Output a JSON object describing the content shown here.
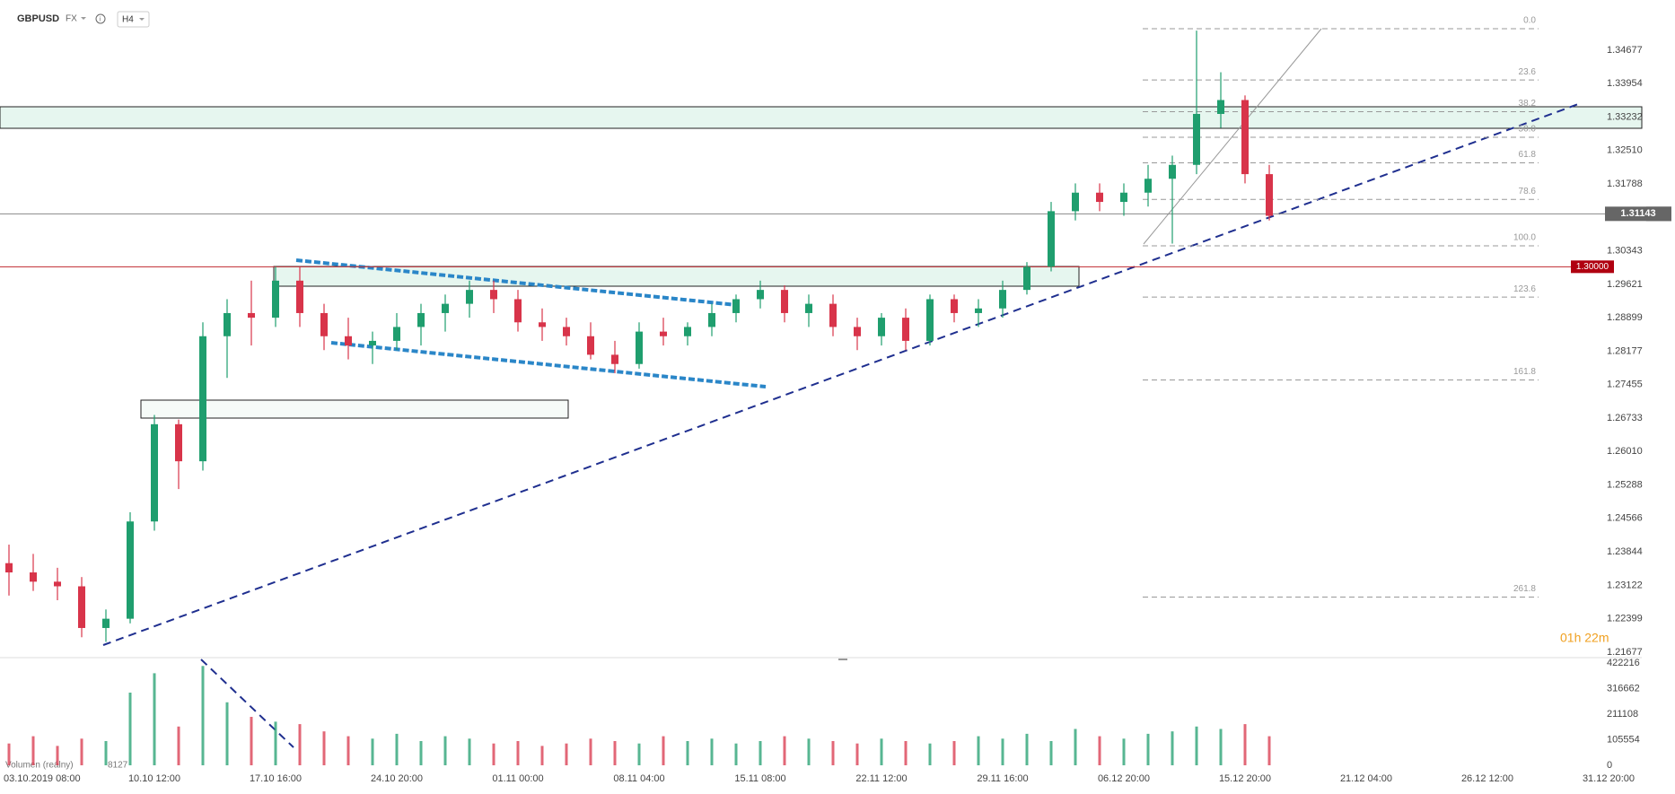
{
  "chart_data": {
    "type": "candlestick",
    "title": "GBPUSD",
    "market": "FX",
    "timeframe": "H4",
    "countdown": "01h 22m",
    "volume_label": "Volumen (reálny)",
    "volume_last": 8127,
    "up_color": "#1f9e6e",
    "down_color": "#d8344a",
    "categories": [
      null,
      "03.10.2019 08:00",
      null,
      null,
      null,
      null,
      "10.10 12:00",
      null,
      null,
      null,
      null,
      "17.10 16:00",
      null,
      null,
      null,
      null,
      "24.10 20:00",
      null,
      null,
      null,
      null,
      "01.11 00:00",
      null,
      null,
      null,
      null,
      "08.11 04:00",
      null,
      null,
      null,
      null,
      "15.11 08:00",
      null,
      null,
      null,
      null,
      "22.11 12:00",
      null,
      null,
      null,
      null,
      "29.11 16:00",
      null,
      null,
      null,
      null,
      "06.12 20:00",
      null,
      null,
      null,
      null,
      "15.12 20:00",
      null,
      null,
      null,
      null,
      "21.12 04:00",
      null,
      null,
      null,
      null,
      "26.12 12:00",
      null,
      null,
      null,
      null,
      "31.12 20:00"
    ],
    "open": [
      1.236,
      1.234,
      1.232,
      1.231,
      1.222,
      1.224,
      1.245,
      1.266,
      1.258,
      1.285,
      1.29,
      1.289,
      1.297,
      1.29,
      1.285,
      1.283,
      1.284,
      1.287,
      1.29,
      1.292,
      1.295,
      1.293,
      1.288,
      1.287,
      1.285,
      1.281,
      1.279,
      1.286,
      1.285,
      1.287,
      1.29,
      1.293,
      1.295,
      1.29,
      1.292,
      1.287,
      1.285,
      1.289,
      1.284,
      1.293,
      1.29,
      1.291,
      1.295,
      1.3,
      1.312,
      1.316,
      1.314,
      1.316,
      1.319,
      1.322,
      1.333,
      1.336,
      1.32,
      null,
      null,
      null,
      null,
      null,
      null,
      null,
      null,
      null,
      null,
      null,
      null,
      null,
      null
    ],
    "high": [
      1.24,
      1.238,
      1.235,
      1.233,
      1.226,
      1.247,
      1.268,
      1.267,
      1.288,
      1.293,
      1.297,
      1.3,
      1.3,
      1.292,
      1.289,
      1.286,
      1.29,
      1.292,
      1.294,
      1.297,
      1.297,
      1.295,
      1.291,
      1.289,
      1.288,
      1.284,
      1.288,
      1.289,
      1.288,
      1.292,
      1.294,
      1.297,
      1.296,
      1.294,
      1.294,
      1.289,
      1.29,
      1.291,
      1.294,
      1.294,
      1.293,
      1.297,
      1.301,
      1.314,
      1.318,
      1.318,
      1.318,
      1.322,
      1.324,
      1.351,
      1.342,
      1.337,
      1.322,
      null,
      null,
      null,
      null,
      null,
      null,
      null,
      null,
      null,
      null,
      null,
      null,
      null,
      null
    ],
    "low": [
      1.229,
      1.23,
      1.228,
      1.22,
      1.219,
      1.223,
      1.243,
      1.252,
      1.256,
      1.276,
      1.283,
      1.287,
      1.287,
      1.282,
      1.28,
      1.279,
      1.282,
      1.283,
      1.286,
      1.289,
      1.29,
      1.286,
      1.284,
      1.283,
      1.28,
      1.277,
      1.278,
      1.283,
      1.283,
      1.285,
      1.288,
      1.291,
      1.288,
      1.287,
      1.285,
      1.282,
      1.283,
      1.282,
      1.283,
      1.288,
      1.287,
      1.289,
      1.294,
      1.299,
      1.31,
      1.312,
      1.311,
      1.313,
      1.305,
      1.32,
      1.33,
      1.318,
      1.31,
      null,
      null,
      null,
      null,
      null,
      null,
      null,
      null,
      null,
      null,
      null,
      null,
      null,
      null
    ],
    "close": [
      1.234,
      1.232,
      1.231,
      1.222,
      1.224,
      1.245,
      1.266,
      1.258,
      1.285,
      1.29,
      1.289,
      1.297,
      1.29,
      1.285,
      1.283,
      1.284,
      1.287,
      1.29,
      1.292,
      1.295,
      1.293,
      1.288,
      1.287,
      1.285,
      1.281,
      1.279,
      1.286,
      1.285,
      1.287,
      1.29,
      1.293,
      1.295,
      1.29,
      1.292,
      1.287,
      1.285,
      1.289,
      1.284,
      1.293,
      1.29,
      1.291,
      1.295,
      1.3,
      1.312,
      1.316,
      1.314,
      1.316,
      1.319,
      1.322,
      1.333,
      1.336,
      1.32,
      1.311,
      null,
      null,
      null,
      null,
      null,
      null,
      null,
      null,
      null,
      null,
      null,
      null,
      null,
      null
    ],
    "volume": [
      90000,
      120000,
      80000,
      110000,
      100000,
      300000,
      380000,
      160000,
      410000,
      260000,
      200000,
      180000,
      170000,
      140000,
      120000,
      110000,
      130000,
      100000,
      120000,
      110000,
      90000,
      100000,
      80000,
      90000,
      110000,
      100000,
      90000,
      120000,
      100000,
      110000,
      90000,
      100000,
      120000,
      110000,
      100000,
      90000,
      110000,
      100000,
      90000,
      100000,
      120000,
      110000,
      130000,
      100000,
      150000,
      120000,
      110000,
      130000,
      140000,
      160000,
      150000,
      170000,
      120000,
      null,
      null,
      null,
      null,
      null,
      null,
      null,
      null,
      null,
      null,
      null,
      null,
      null,
      null
    ],
    "ylim": [
      1.2156,
      1.3576
    ],
    "yticks": [
      1.34677,
      1.33954,
      1.33232,
      {
        "value": 1.3251,
        "label": "1.32510"
      },
      1.31788,
      1.30343,
      1.29621,
      1.28899,
      1.28177,
      1.27455,
      1.26733,
      {
        "value": 1.2601,
        "label": "1.26010"
      },
      1.25288,
      1.24566,
      1.23844,
      1.23122,
      1.22399,
      1.21677
    ],
    "current_price": 1.31143,
    "level": {
      "value": 1.3,
      "label": "1.30000"
    },
    "fib_levels": [
      {
        "value": 0,
        "label": "0.0"
      },
      23.6,
      38.2,
      {
        "value": 50,
        "label": "50.0"
      },
      61.8,
      78.6,
      {
        "value": 100,
        "label": "100.0"
      },
      123.6,
      161.8,
      261.8
    ],
    "volume_ylim": [
      0,
      422216
    ],
    "volume_ticks": [
      0,
      105554,
      211108,
      316662,
      422216
    ]
  }
}
